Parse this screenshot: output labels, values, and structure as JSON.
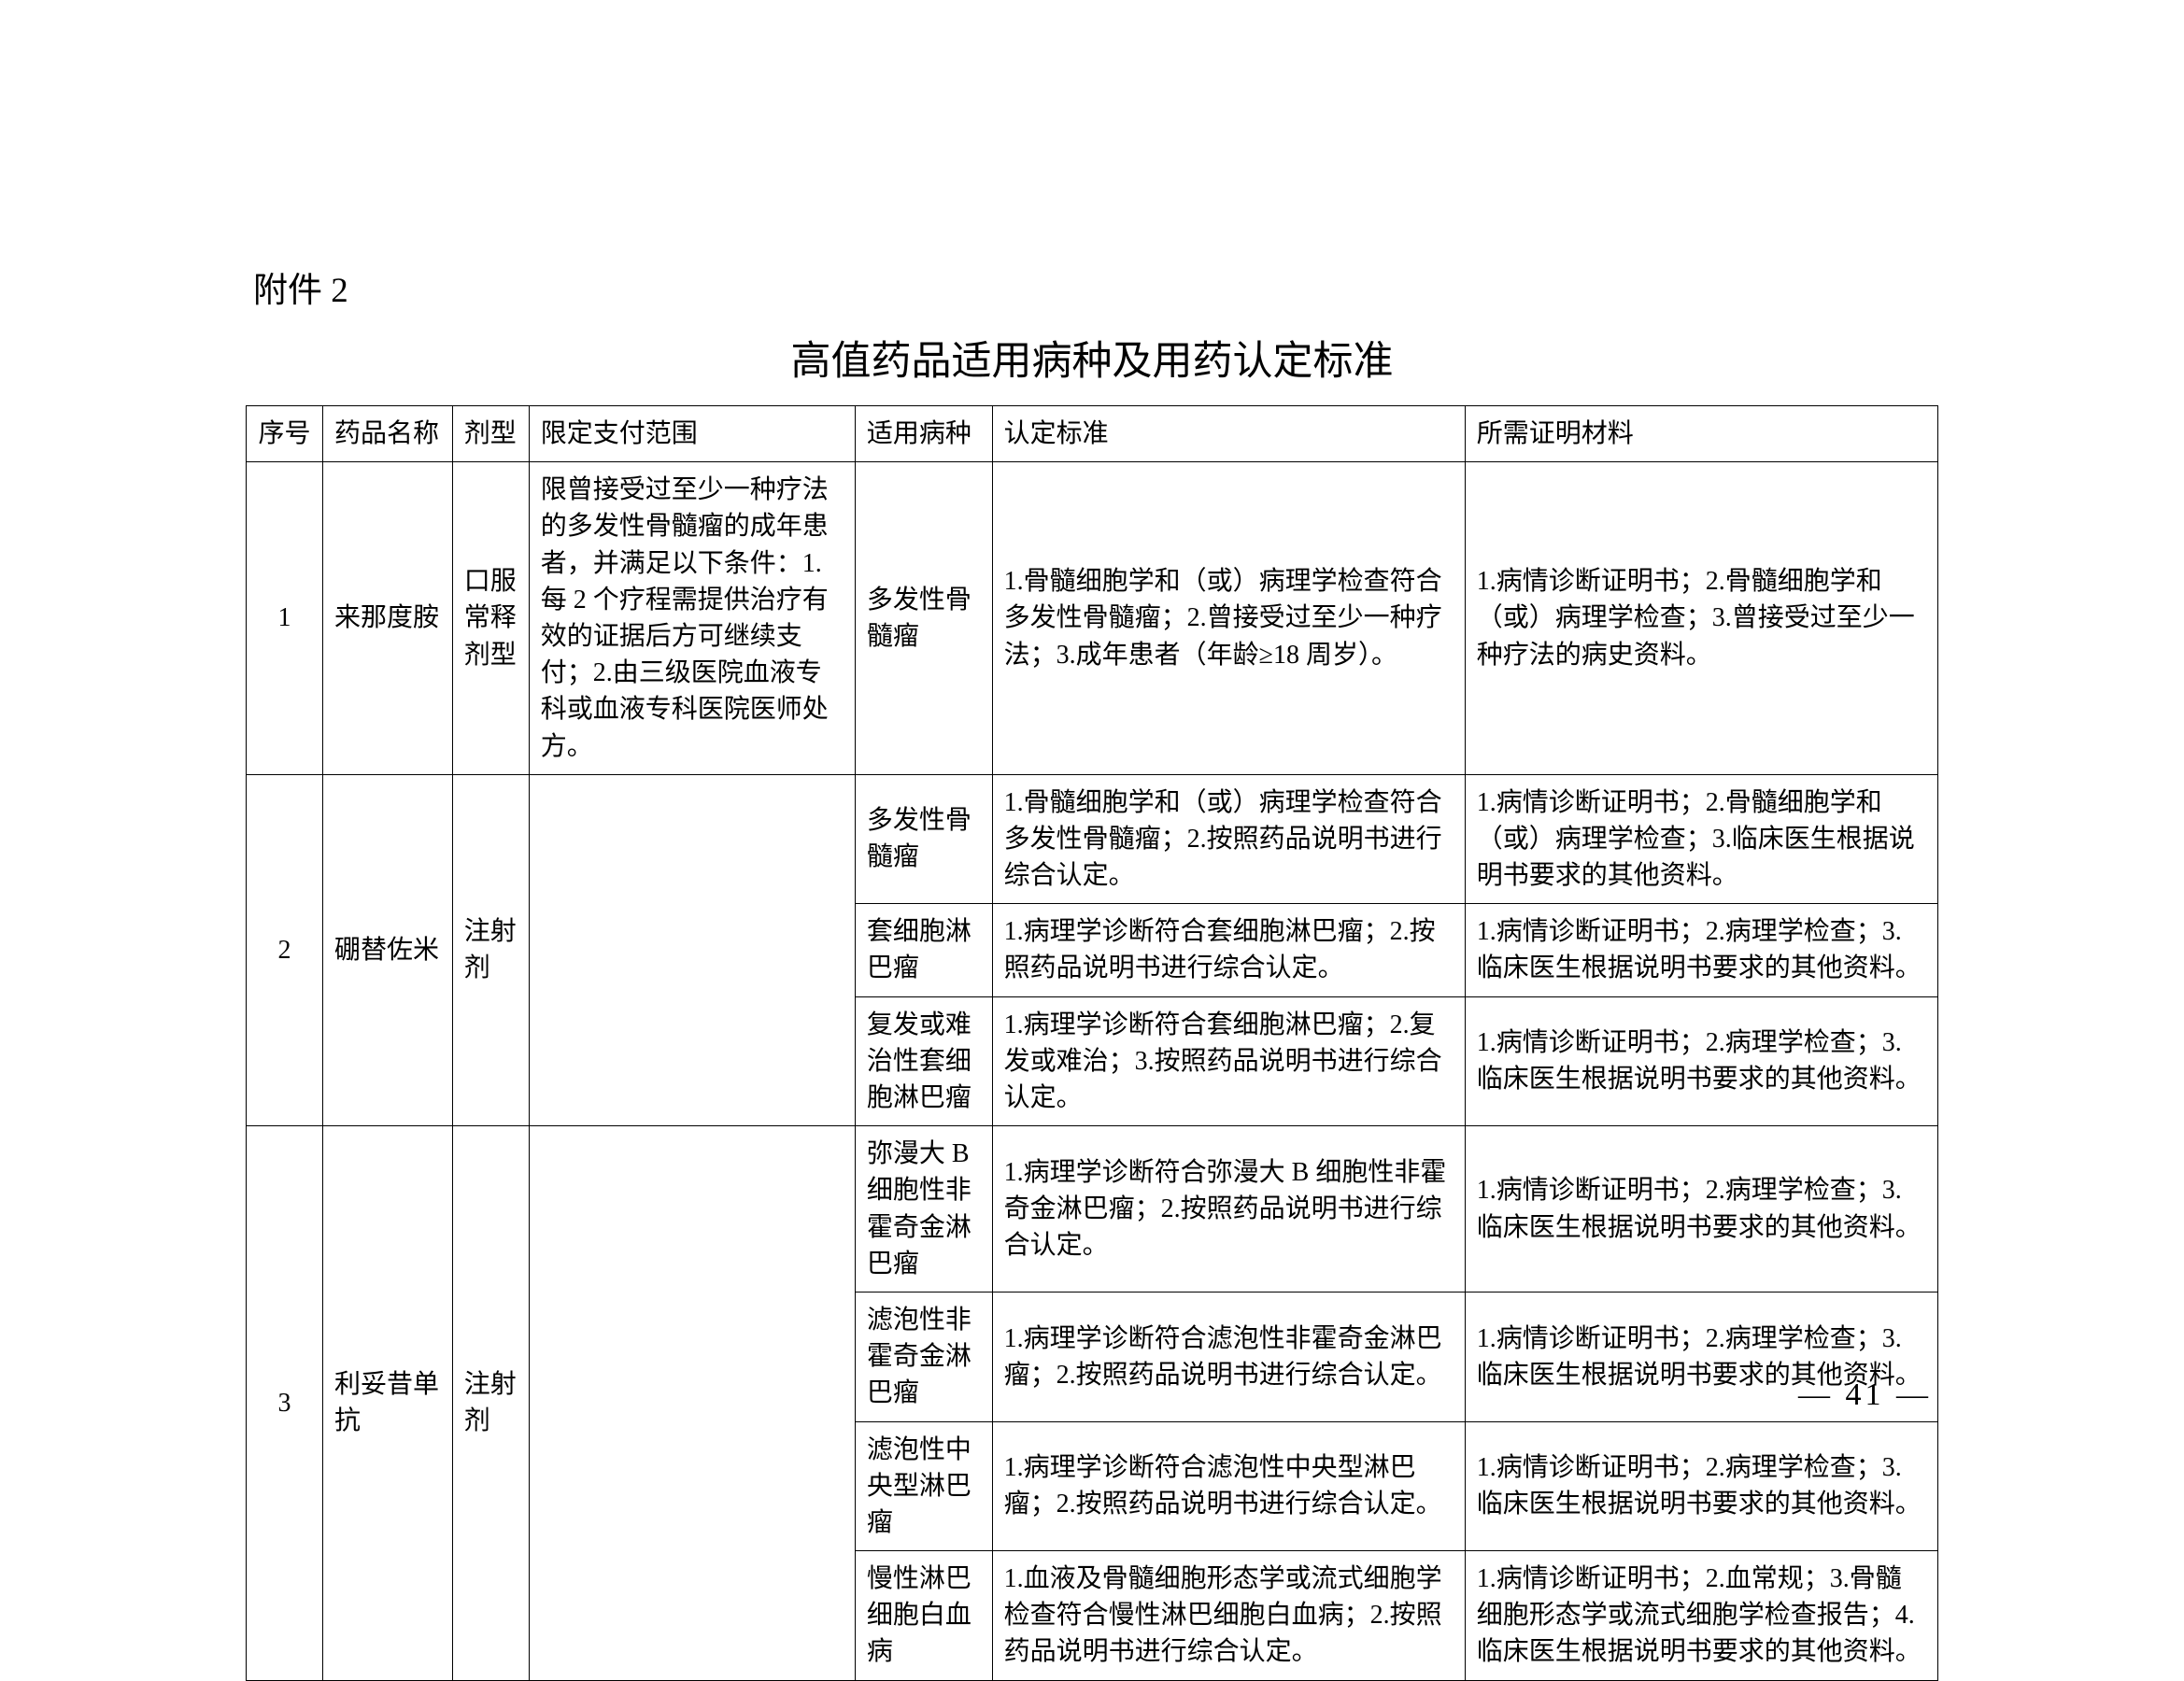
{
  "attachment_label": "附件 2",
  "title": "高值药品适用病种及用药认定标准",
  "headers": {
    "seq": "序号",
    "name": "药品名称",
    "form": "剂型",
    "scope": "限定支付范围",
    "disease": "适用病种",
    "standard": "认定标准",
    "material": "所需证明材料"
  },
  "rows": [
    {
      "seq": "1",
      "name": "来那度胺",
      "form": "口服常释剂型",
      "scope": "限曾接受过至少一种疗法的多发性骨髓瘤的成年患者，并满足以下条件：1.每 2 个疗程需提供治疗有效的证据后方可继续支付；2.由三级医院血液专科或血液专科医院医师处方。",
      "diseases": [
        {
          "disease": "多发性骨髓瘤",
          "standard": "1.骨髓细胞学和（或）病理学检查符合多发性骨髓瘤；2.曾接受过至少一种疗法；3.成年患者（年龄≥18 周岁）。",
          "material": "1.病情诊断证明书；2.骨髓细胞学和（或）病理学检查；3.曾接受过至少一种疗法的病史资料。"
        }
      ]
    },
    {
      "seq": "2",
      "name": "硼替佐米",
      "form": "注射剂",
      "scope": "",
      "diseases": [
        {
          "disease": "多发性骨髓瘤",
          "standard": "1.骨髓细胞学和（或）病理学检查符合多发性骨髓瘤；2.按照药品说明书进行综合认定。",
          "material": "1.病情诊断证明书；2.骨髓细胞学和（或）病理学检查；3.临床医生根据说明书要求的其他资料。"
        },
        {
          "disease": "套细胞淋巴瘤",
          "standard": "1.病理学诊断符合套细胞淋巴瘤；2.按照药品说明书进行综合认定。",
          "material": "1.病情诊断证明书；2.病理学检查；3.临床医生根据说明书要求的其他资料。"
        },
        {
          "disease": "复发或难治性套细胞淋巴瘤",
          "standard": "1.病理学诊断符合套细胞淋巴瘤；2.复发或难治；3.按照药品说明书进行综合认定。",
          "material": "1.病情诊断证明书；2.病理学检查；3.临床医生根据说明书要求的其他资料。"
        }
      ]
    },
    {
      "seq": "3",
      "name": "利妥昔单抗",
      "form": "注射剂",
      "scope": "",
      "diseases": [
        {
          "disease": "弥漫大 B 细胞性非霍奇金淋巴瘤",
          "standard": "1.病理学诊断符合弥漫大 B 细胞性非霍奇金淋巴瘤；2.按照药品说明书进行综合认定。",
          "material": "1.病情诊断证明书；2.病理学检查；3.临床医生根据说明书要求的其他资料。"
        },
        {
          "disease": "滤泡性非霍奇金淋巴瘤",
          "standard": "1.病理学诊断符合滤泡性非霍奇金淋巴瘤；2.按照药品说明书进行综合认定。",
          "material": "1.病情诊断证明书；2.病理学检查；3.临床医生根据说明书要求的其他资料。"
        },
        {
          "disease": "滤泡性中央型淋巴瘤",
          "standard": "1.病理学诊断符合滤泡性中央型淋巴瘤；2.按照药品说明书进行综合认定。",
          "material": "1.病情诊断证明书；2.病理学检查；3.临床医生根据说明书要求的其他资料。"
        },
        {
          "disease": "慢性淋巴细胞白血病",
          "standard": "1.血液及骨髓细胞形态学或流式细胞学检查符合慢性淋巴细胞白血病；2.按照药品说明书进行综合认定。",
          "material": "1.病情诊断证明书；2.血常规；3.骨髓细胞形态学或流式细胞学检查报告；4.临床医生根据说明书要求的其他资料。"
        }
      ]
    }
  ],
  "page_number": "— 41 —"
}
